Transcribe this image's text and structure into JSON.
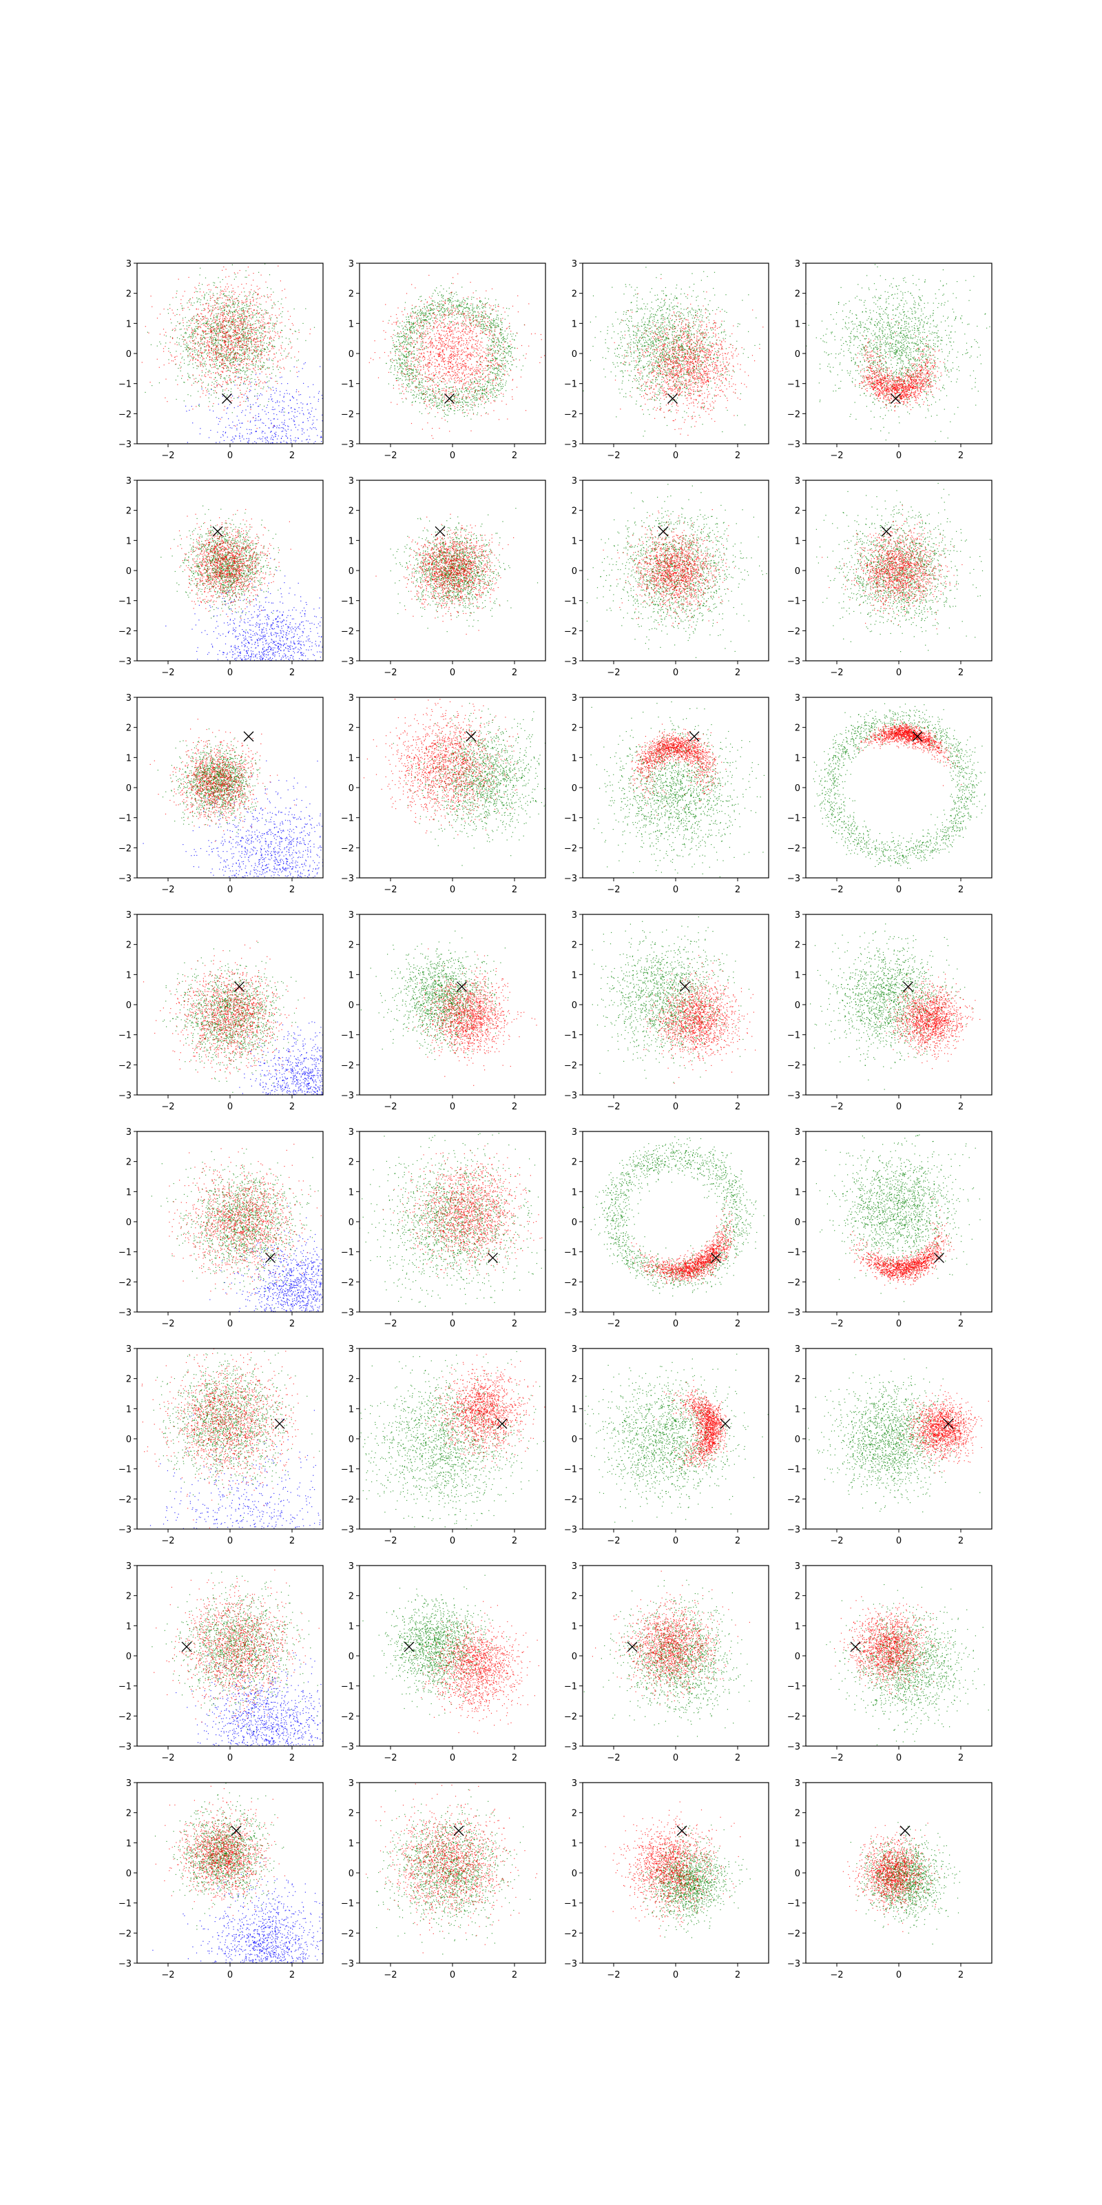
{
  "figure": {
    "rows": 8,
    "cols": 4,
    "colors": {
      "blue": "#0000ff",
      "green": "#008000",
      "red": "#ff0000",
      "marker": "#000000",
      "axes": "#000000"
    }
  },
  "chart_data": {
    "type": "scatter",
    "xlim": [
      -3,
      3
    ],
    "ylim": [
      -3,
      3
    ],
    "xticks": [
      -2,
      0,
      2
    ],
    "yticks": [
      -3,
      -2,
      -1,
      0,
      1,
      2,
      3
    ],
    "xticklabels": [
      "−2",
      "0",
      "2"
    ],
    "yticklabels": [
      "−3",
      "−2",
      "−1",
      "0",
      "1",
      "2",
      "3"
    ],
    "grid": false,
    "legend": "none",
    "point_size": "tiny",
    "rows": [
      {
        "marker": [
          -0.1,
          -1.5
        ],
        "panels": [
          {
            "col": 1,
            "blue": {
              "center": [
                1.4,
                -3.0
              ],
              "spread": 1.1,
              "count": 900
            },
            "green": {
              "center": [
                0.0,
                0.5
              ],
              "spread": 0.85,
              "count": 1400
            },
            "red": {
              "center": [
                0.0,
                0.5
              ],
              "spread": 0.85,
              "count": 1400
            }
          },
          {
            "col": 2,
            "green": {
              "ring_center": [
                0.0,
                0.0
              ],
              "radius": 1.6,
              "width": 0.55,
              "count": 1700
            },
            "red": {
              "center": [
                0.0,
                0.0
              ],
              "spread": 0.9,
              "count": 1500
            }
          },
          {
            "col": 3,
            "green": {
              "center": [
                -0.2,
                0.2
              ],
              "spread": 0.9,
              "count": 1500
            },
            "red": {
              "center": [
                0.4,
                -0.4
              ],
              "spread": 0.75,
              "count": 1400
            }
          },
          {
            "col": 4,
            "green": {
              "center": [
                0.0,
                0.2
              ],
              "spread": 1.0,
              "count": 1500
            },
            "red": {
              "arc_center": [
                0.0,
                -0.3
              ],
              "radius": 0.95,
              "angle_deg": -90,
              "arc_span_deg": 110,
              "width": 0.4,
              "count": 1300
            }
          }
        ]
      },
      {
        "marker": [
          -0.4,
          1.3
        ],
        "panels": [
          {
            "col": 1,
            "blue": {
              "center": [
                1.3,
                -2.8
              ],
              "spread": 0.95,
              "count": 1300
            },
            "green": {
              "center": [
                -0.1,
                0.2
              ],
              "spread": 0.6,
              "count": 1300
            },
            "red": {
              "center": [
                -0.1,
                0.2
              ],
              "spread": 0.6,
              "count": 1300
            }
          },
          {
            "col": 2,
            "green": {
              "center": [
                0.0,
                0.0
              ],
              "spread": 0.65,
              "count": 1400
            },
            "red": {
              "center": [
                0.0,
                0.0
              ],
              "spread": 0.6,
              "count": 1400
            }
          },
          {
            "col": 3,
            "green": {
              "center": [
                0.0,
                0.0
              ],
              "spread": 0.95,
              "count": 1500
            },
            "red": {
              "center": [
                0.0,
                0.0
              ],
              "spread": 0.6,
              "count": 1400
            }
          },
          {
            "col": 4,
            "green": {
              "center": [
                0.0,
                0.0
              ],
              "spread": 0.9,
              "count": 1500
            },
            "red": {
              "center": [
                0.0,
                0.0
              ],
              "spread": 0.6,
              "count": 1400
            }
          }
        ]
      },
      {
        "marker": [
          0.6,
          1.7
        ],
        "panels": [
          {
            "col": 1,
            "blue": {
              "center": [
                1.5,
                -2.6
              ],
              "spread": 1.1,
              "count": 1300
            },
            "green": {
              "center": [
                -0.4,
                0.2
              ],
              "spread": 0.55,
              "count": 1300
            },
            "red": {
              "center": [
                -0.4,
                0.2
              ],
              "spread": 0.6,
              "count": 1200
            }
          },
          {
            "col": 2,
            "green": {
              "center": [
                1.0,
                0.3
              ],
              "spread": 0.85,
              "count": 1400
            },
            "red": {
              "center": [
                -0.2,
                0.8
              ],
              "spread": 0.8,
              "count": 1500
            }
          },
          {
            "col": 3,
            "green": {
              "center": [
                0.0,
                -0.2
              ],
              "spread": 1.0,
              "count": 1500
            },
            "red": {
              "arc_center": [
                0.0,
                0.4
              ],
              "radius": 1.0,
              "angle_deg": 90,
              "arc_span_deg": 110,
              "width": 0.35,
              "count": 1400
            }
          },
          {
            "col": 4,
            "green": {
              "ring_center": [
                0.0,
                0.0
              ],
              "radius": 2.2,
              "width": 0.5,
              "count": 1600
            },
            "red": {
              "arc_center": [
                0.0,
                0.0
              ],
              "radius": 1.8,
              "angle_deg": 80,
              "arc_span_deg": 45,
              "width": 0.25,
              "count": 1300
            }
          }
        ]
      },
      {
        "marker": [
          0.3,
          0.6
        ],
        "panels": [
          {
            "col": 1,
            "blue": {
              "center": [
                2.4,
                -2.7
              ],
              "spread": 0.75,
              "count": 1100
            },
            "green": {
              "center": [
                0.0,
                -0.4
              ],
              "spread": 0.75,
              "count": 1300
            },
            "red": {
              "center": [
                0.0,
                -0.4
              ],
              "spread": 0.75,
              "count": 1300
            }
          },
          {
            "col": 2,
            "green": {
              "center": [
                -0.3,
                0.2
              ],
              "spread": 0.7,
              "count": 1400
            },
            "red": {
              "center": [
                0.5,
                -0.4
              ],
              "spread": 0.6,
              "count": 1400
            }
          },
          {
            "col": 3,
            "green": {
              "center": [
                -0.3,
                0.2
              ],
              "spread": 0.9,
              "count": 1400
            },
            "red": {
              "center": [
                0.7,
                -0.5
              ],
              "spread": 0.6,
              "count": 1400
            }
          },
          {
            "col": 4,
            "green": {
              "center": [
                -0.3,
                0.2
              ],
              "spread": 0.85,
              "count": 1400
            },
            "red": {
              "center": [
                1.0,
                -0.5
              ],
              "spread": 0.5,
              "count": 1400
            }
          }
        ]
      },
      {
        "marker": [
          1.3,
          -1.2
        ],
        "panels": [
          {
            "col": 1,
            "blue": {
              "center": [
                2.2,
                -2.3
              ],
              "spread": 0.8,
              "count": 1200
            },
            "green": {
              "center": [
                0.4,
                0.0
              ],
              "spread": 0.85,
              "count": 1300
            },
            "red": {
              "center": [
                0.4,
                0.0
              ],
              "spread": 0.85,
              "count": 1300
            }
          },
          {
            "col": 2,
            "green": {
              "center": [
                0.0,
                0.0
              ],
              "spread": 1.1,
              "count": 1500
            },
            "red": {
              "center": [
                0.5,
                0.3
              ],
              "spread": 0.8,
              "count": 1400
            }
          },
          {
            "col": 3,
            "green": {
              "ring_center": [
                0.0,
                0.2
              ],
              "radius": 2.0,
              "width": 0.55,
              "count": 1600
            },
            "red": {
              "arc_center": [
                0.0,
                0.0
              ],
              "radius": 1.65,
              "angle_deg": -65,
              "arc_span_deg": 60,
              "width": 0.3,
              "count": 1400
            }
          },
          {
            "col": 4,
            "green": {
              "center": [
                0.0,
                0.4
              ],
              "spread": 0.9,
              "count": 1500
            },
            "red": {
              "arc_center": [
                0.0,
                -0.2
              ],
              "radius": 1.4,
              "angle_deg": -80,
              "arc_span_deg": 70,
              "width": 0.3,
              "count": 1400
            }
          }
        ]
      },
      {
        "marker": [
          1.6,
          0.5
        ],
        "panels": [
          {
            "col": 1,
            "blue": {
              "center": [
                0.8,
                -3.0
              ],
              "spread": 1.3,
              "count": 700
            },
            "green": {
              "center": [
                -0.1,
                0.6
              ],
              "spread": 0.9,
              "count": 1400
            },
            "red": {
              "center": [
                -0.1,
                0.6
              ],
              "spread": 0.9,
              "count": 1400
            }
          },
          {
            "col": 2,
            "green": {
              "center": [
                -0.3,
                -0.2
              ],
              "spread": 1.1,
              "count": 1500
            },
            "red": {
              "center": [
                1.0,
                0.9
              ],
              "spread": 0.6,
              "count": 1400
            }
          },
          {
            "col": 3,
            "green": {
              "center": [
                -0.3,
                0.0
              ],
              "spread": 1.0,
              "count": 1500
            },
            "red": {
              "arc_center": [
                0.2,
                0.3
              ],
              "radius": 1.0,
              "angle_deg": 5,
              "arc_span_deg": 90,
              "width": 0.35,
              "count": 1400
            }
          },
          {
            "col": 4,
            "green": {
              "center": [
                -0.3,
                0.0
              ],
              "spread": 0.85,
              "count": 1500
            },
            "red": {
              "center": [
                1.4,
                0.3
              ],
              "spread": 0.45,
              "count": 1400
            }
          }
        ]
      },
      {
        "marker": [
          -1.4,
          0.3
        ],
        "panels": [
          {
            "col": 1,
            "blue": {
              "center": [
                1.2,
                -2.4
              ],
              "spread": 0.95,
              "count": 1300
            },
            "green": {
              "center": [
                0.2,
                0.3
              ],
              "spread": 0.85,
              "count": 1300
            },
            "red": {
              "center": [
                0.2,
                0.3
              ],
              "spread": 0.85,
              "count": 1300
            }
          },
          {
            "col": 2,
            "green": {
              "center": [
                -0.5,
                0.3
              ],
              "spread": 0.7,
              "count": 1400
            },
            "red": {
              "center": [
                0.8,
                -0.4
              ],
              "spread": 0.65,
              "count": 1400
            }
          },
          {
            "col": 3,
            "green": {
              "center": [
                0.1,
                -0.1
              ],
              "spread": 0.85,
              "count": 1400
            },
            "red": {
              "center": [
                -0.1,
                0.3
              ],
              "spread": 0.65,
              "count": 1400
            }
          },
          {
            "col": 4,
            "green": {
              "center": [
                0.3,
                -0.3
              ],
              "spread": 0.85,
              "count": 1400
            },
            "red": {
              "center": [
                -0.3,
                0.3
              ],
              "spread": 0.55,
              "count": 1400
            }
          }
        ]
      },
      {
        "marker": [
          0.2,
          1.4
        ],
        "panels": [
          {
            "col": 1,
            "blue": {
              "center": [
                1.2,
                -2.5
              ],
              "spread": 0.9,
              "count": 1300
            },
            "green": {
              "center": [
                -0.2,
                0.6
              ],
              "spread": 0.65,
              "count": 1300
            },
            "red": {
              "center": [
                -0.2,
                0.6
              ],
              "spread": 0.65,
              "count": 1300
            }
          },
          {
            "col": 2,
            "green": {
              "center": [
                -0.1,
                0.1
              ],
              "spread": 0.85,
              "count": 1400
            },
            "red": {
              "center": [
                -0.1,
                0.3
              ],
              "spread": 0.85,
              "count": 1400
            }
          },
          {
            "col": 3,
            "green": {
              "center": [
                0.4,
                -0.3
              ],
              "spread": 0.6,
              "count": 1400
            },
            "red": {
              "center": [
                -0.2,
                0.2
              ],
              "spread": 0.65,
              "count": 1400
            }
          },
          {
            "col": 4,
            "green": {
              "center": [
                0.2,
                -0.2
              ],
              "spread": 0.6,
              "count": 1400
            },
            "red": {
              "center": [
                -0.2,
                0.0
              ],
              "spread": 0.5,
              "count": 1300
            }
          }
        ]
      }
    ]
  }
}
